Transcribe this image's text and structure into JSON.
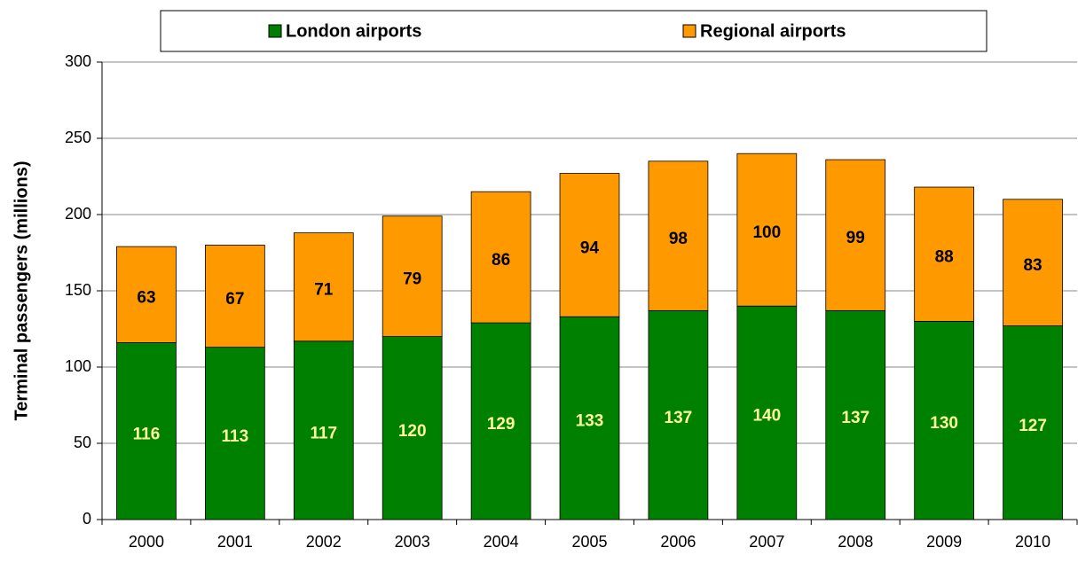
{
  "chart_data": {
    "type": "bar",
    "stacked": true,
    "y_label": "Terminal passengers (millions)",
    "categories": [
      "2000",
      "2001",
      "2002",
      "2003",
      "2004",
      "2005",
      "2006",
      "2007",
      "2008",
      "2009",
      "2010"
    ],
    "series": [
      {
        "name": "London airports",
        "color": "#008000",
        "label_color": "#ffff99",
        "values": [
          116,
          113,
          117,
          120,
          129,
          133,
          137,
          140,
          137,
          130,
          127
        ]
      },
      {
        "name": "Regional airports",
        "color": "#ff9900",
        "label_color": "#000000",
        "values": [
          63,
          67,
          71,
          79,
          86,
          94,
          98,
          100,
          99,
          88,
          83
        ]
      }
    ],
    "ylim": [
      0,
      300
    ],
    "yticks": [
      0,
      50,
      100,
      150,
      200,
      250,
      300
    ],
    "grid": true,
    "legend": "top"
  }
}
